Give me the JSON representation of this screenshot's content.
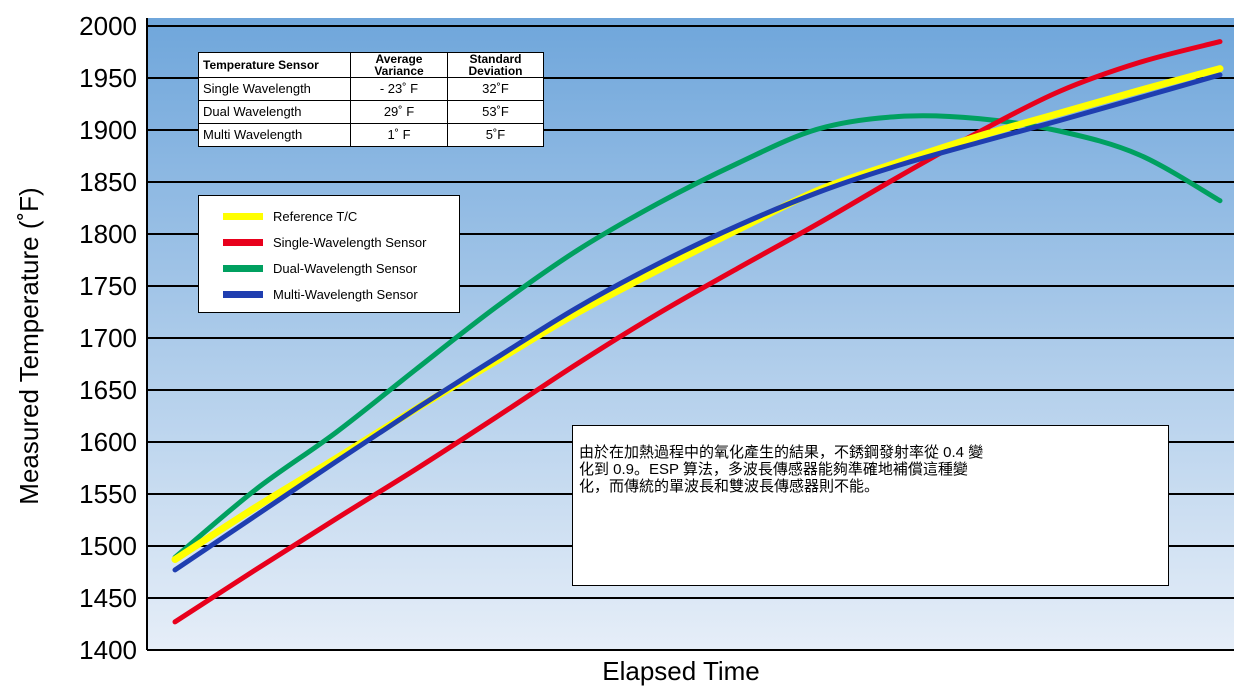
{
  "chart_data": {
    "type": "line",
    "xlabel": "Elapsed Time",
    "ylabel": "Measured Temperature (˚F)",
    "ylim": [
      1400,
      2000
    ],
    "yticks": [
      1400,
      1450,
      1500,
      1550,
      1600,
      1650,
      1700,
      1750,
      1800,
      1850,
      1900,
      1950,
      2000
    ],
    "x_ticks_shown": false,
    "grid": "horizontal",
    "background": "vertical gradient, blue top to pale blue bottom",
    "x": [
      0,
      1,
      2,
      3,
      4,
      5,
      6,
      7,
      8,
      9,
      10,
      11,
      12,
      13
    ],
    "series": [
      {
        "name": "Reference T/C",
        "color": "#ffff00",
        "values": [
          1487,
          1537,
          1584,
          1632,
          1678,
          1724,
          1765,
          1804,
          1842,
          1869,
          1894,
          1916,
          1938,
          1959
        ]
      },
      {
        "name": "Single-Wavelength Sensor",
        "color": "#e8001c",
        "values": [
          1427,
          1477,
          1526,
          1574,
          1624,
          1675,
          1723,
          1767,
          1810,
          1855,
          1898,
          1937,
          1965,
          1985
        ]
      },
      {
        "name": "Dual-Wavelength Sensor",
        "color": "#00a060",
        "values": [
          1489,
          1554,
          1609,
          1670,
          1730,
          1784,
          1829,
          1868,
          1901,
          1913,
          1911,
          1899,
          1876,
          1832
        ]
      },
      {
        "name": "Multi-Wavelength Sensor",
        "color": "#1f3eb0",
        "values": [
          1477,
          1529,
          1581,
          1632,
          1681,
          1729,
          1771,
          1808,
          1840,
          1866,
          1888,
          1909,
          1931,
          1953
        ]
      }
    ]
  },
  "stats_table": {
    "headers": [
      "Temperature Sensor",
      "Average Variance",
      "Standard Deviation"
    ],
    "rows": [
      [
        "Single Wavelength",
        "- 23˚ F",
        "32˚F"
      ],
      [
        "Dual Wavelength",
        "29˚ F",
        "53˚F"
      ],
      [
        "Multi Wavelength",
        "1˚ F",
        "5˚F"
      ]
    ]
  },
  "legend": {
    "items": [
      {
        "label": "Reference T/C",
        "color": "#ffff00"
      },
      {
        "label": "Single-Wavelength Sensor",
        "color": "#e8001c"
      },
      {
        "label": "Dual-Wavelength Sensor",
        "color": "#00a060"
      },
      {
        "label": "Multi-Wavelength Sensor",
        "color": "#1f3eb0"
      }
    ]
  },
  "note": {
    "lines": [
      "由於在加熱過程中的氧化產生的結果，不銹鋼發射率從 0.4 變",
      "化到 0.9。ESP 算法，多波長傳感器能夠準確地補償這種變",
      "化，而傳統的單波長和雙波長傳感器則不能。"
    ]
  }
}
